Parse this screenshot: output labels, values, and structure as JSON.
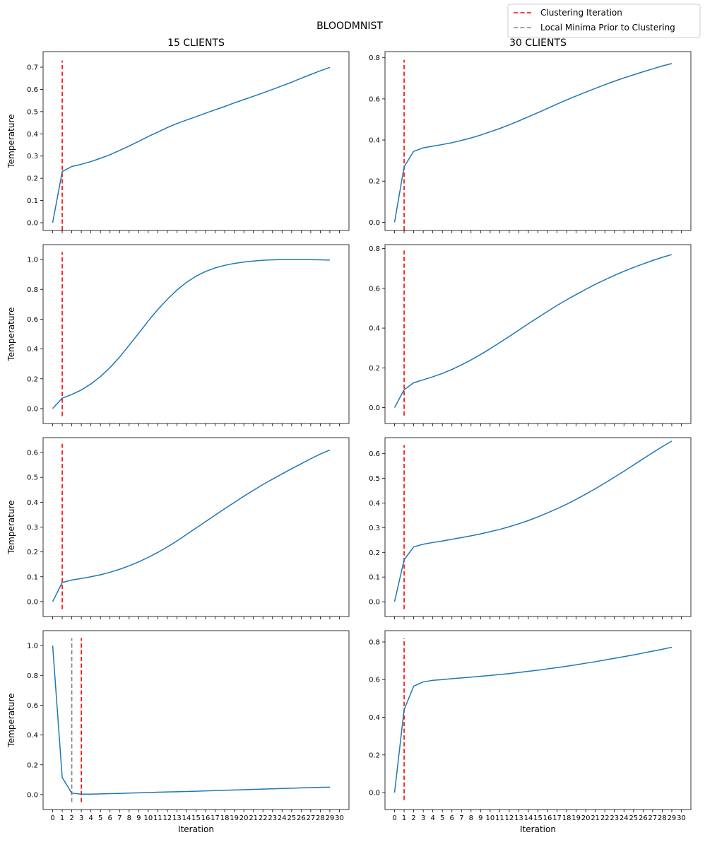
{
  "figure": {
    "suptitle": "BLOODMNIST",
    "column_titles": [
      "15 CLIENTS",
      "30 CLIENTS"
    ],
    "xlabel": "Iteration",
    "ylabel": "Temperature",
    "legend": {
      "placement": "top-right",
      "entries": [
        {
          "label": "Clustering Iteration",
          "color": "#ff0000",
          "style": "dashed"
        },
        {
          "label": "Local Minima Prior to Clustering",
          "color": "#808080",
          "style": "dashed"
        }
      ]
    },
    "series_color": "#1f77b4"
  },
  "chart_data": [
    {
      "type": "line",
      "row": 0,
      "col": 0,
      "title": "15 CLIENTS",
      "xlabel": "",
      "ylabel": "Temperature",
      "xlim": [
        -1,
        31
      ],
      "ylim": [
        -0.035,
        0.77
      ],
      "xticks": [
        0,
        1,
        2,
        3,
        4,
        5,
        6,
        7,
        8,
        9,
        10,
        11,
        12,
        13,
        14,
        15,
        16,
        17,
        18,
        19,
        20,
        21,
        22,
        23,
        24,
        25,
        26,
        27,
        28,
        29,
        30
      ],
      "show_xticklabels": false,
      "yticks": [
        0.0,
        0.1,
        0.2,
        0.3,
        0.4,
        0.5,
        0.6,
        0.7
      ],
      "ytick_labels": [
        "0.0",
        "0.1",
        "0.2",
        "0.3",
        "0.4",
        "0.5",
        "0.6",
        "0.7"
      ],
      "x": [
        0,
        1,
        2,
        3,
        4,
        5,
        6,
        7,
        8,
        9,
        10,
        11,
        12,
        13,
        14,
        15,
        16,
        17,
        18,
        19,
        20,
        21,
        22,
        23,
        24,
        25,
        26,
        27,
        28,
        29
      ],
      "y": [
        0.0,
        0.23,
        0.253,
        0.263,
        0.275,
        0.29,
        0.306,
        0.325,
        0.345,
        0.366,
        0.388,
        0.408,
        0.428,
        0.446,
        0.462,
        0.477,
        0.493,
        0.508,
        0.523,
        0.539,
        0.554,
        0.569,
        0.584,
        0.6,
        0.616,
        0.632,
        0.65,
        0.667,
        0.684,
        0.699
      ],
      "vlines": [
        {
          "x": 1,
          "ymin": -0.035,
          "ymax": 0.73,
          "color": "#ff0000",
          "legend": "Clustering Iteration"
        }
      ]
    },
    {
      "type": "line",
      "row": 0,
      "col": 1,
      "title": "30 CLIENTS",
      "xlabel": "",
      "ylabel": "",
      "xlim": [
        -1,
        31
      ],
      "ylim": [
        -0.04,
        0.83
      ],
      "xticks": [
        0,
        1,
        2,
        3,
        4,
        5,
        6,
        7,
        8,
        9,
        10,
        11,
        12,
        13,
        14,
        15,
        16,
        17,
        18,
        19,
        20,
        21,
        22,
        23,
        24,
        25,
        26,
        27,
        28,
        29,
        30
      ],
      "show_xticklabels": false,
      "yticks": [
        0.0,
        0.2,
        0.4,
        0.6,
        0.8
      ],
      "ytick_labels": [
        "0.0",
        "0.2",
        "0.4",
        "0.6",
        "0.8"
      ],
      "x": [
        0,
        1,
        2,
        3,
        4,
        5,
        6,
        7,
        8,
        9,
        10,
        11,
        12,
        13,
        14,
        15,
        16,
        17,
        18,
        19,
        20,
        21,
        22,
        23,
        24,
        25,
        26,
        27,
        28,
        29
      ],
      "y": [
        0.0,
        0.27,
        0.345,
        0.362,
        0.37,
        0.378,
        0.387,
        0.398,
        0.41,
        0.424,
        0.44,
        0.456,
        0.474,
        0.493,
        0.513,
        0.533,
        0.554,
        0.575,
        0.595,
        0.614,
        0.633,
        0.651,
        0.669,
        0.686,
        0.702,
        0.717,
        0.732,
        0.746,
        0.76,
        0.772
      ],
      "vlines": [
        {
          "x": 1,
          "ymin": -0.04,
          "ymax": 0.79,
          "color": "#ff0000",
          "legend": "Clustering Iteration"
        }
      ]
    },
    {
      "type": "line",
      "row": 1,
      "col": 0,
      "title": "",
      "xlabel": "",
      "ylabel": "Temperature",
      "xlim": [
        -1,
        31
      ],
      "ylim": [
        -0.1,
        1.1
      ],
      "xticks": [
        0,
        1,
        2,
        3,
        4,
        5,
        6,
        7,
        8,
        9,
        10,
        11,
        12,
        13,
        14,
        15,
        16,
        17,
        18,
        19,
        20,
        21,
        22,
        23,
        24,
        25,
        26,
        27,
        28,
        29,
        30
      ],
      "show_xticklabels": false,
      "yticks": [
        0.0,
        0.2,
        0.4,
        0.6,
        0.8,
        1.0
      ],
      "ytick_labels": [
        "0.0",
        "0.2",
        "0.4",
        "0.6",
        "0.8",
        "1.0"
      ],
      "x": [
        0,
        1,
        2,
        3,
        4,
        5,
        6,
        7,
        8,
        9,
        10,
        11,
        12,
        13,
        14,
        15,
        16,
        17,
        18,
        19,
        20,
        21,
        22,
        23,
        24,
        25,
        26,
        27,
        28,
        29
      ],
      "y": [
        0.0,
        0.07,
        0.095,
        0.125,
        0.165,
        0.215,
        0.275,
        0.345,
        0.425,
        0.505,
        0.588,
        0.665,
        0.733,
        0.795,
        0.847,
        0.888,
        0.92,
        0.944,
        0.961,
        0.974,
        0.983,
        0.99,
        0.995,
        0.998,
        1.0,
        1.0,
        1.0,
        0.999,
        0.998,
        0.996
      ],
      "vlines": [
        {
          "x": 1,
          "ymin": -0.05,
          "ymax": 1.05,
          "color": "#ff0000",
          "legend": "Clustering Iteration"
        }
      ]
    },
    {
      "type": "line",
      "row": 1,
      "col": 1,
      "title": "",
      "xlabel": "",
      "ylabel": "",
      "xlim": [
        -1,
        31
      ],
      "ylim": [
        -0.08,
        0.82
      ],
      "xticks": [
        0,
        1,
        2,
        3,
        4,
        5,
        6,
        7,
        8,
        9,
        10,
        11,
        12,
        13,
        14,
        15,
        16,
        17,
        18,
        19,
        20,
        21,
        22,
        23,
        24,
        25,
        26,
        27,
        28,
        29,
        30
      ],
      "show_xticklabels": false,
      "yticks": [
        0.0,
        0.2,
        0.4,
        0.6,
        0.8
      ],
      "ytick_labels": [
        "0.0",
        "0.2",
        "0.4",
        "0.6",
        "0.8"
      ],
      "x": [
        0,
        1,
        2,
        3,
        4,
        5,
        6,
        7,
        8,
        9,
        10,
        11,
        12,
        13,
        14,
        15,
        16,
        17,
        18,
        19,
        20,
        21,
        22,
        23,
        24,
        25,
        26,
        27,
        28,
        29
      ],
      "y": [
        0.0,
        0.09,
        0.125,
        0.14,
        0.155,
        0.172,
        0.192,
        0.215,
        0.24,
        0.267,
        0.296,
        0.327,
        0.358,
        0.39,
        0.422,
        0.453,
        0.484,
        0.514,
        0.542,
        0.569,
        0.595,
        0.62,
        0.643,
        0.665,
        0.686,
        0.705,
        0.723,
        0.74,
        0.756,
        0.77
      ],
      "vlines": [
        {
          "x": 1,
          "ymin": -0.04,
          "ymax": 0.79,
          "color": "#ff0000",
          "legend": "Clustering Iteration"
        }
      ]
    },
    {
      "type": "line",
      "row": 2,
      "col": 0,
      "title": "",
      "xlabel": "",
      "ylabel": "Temperature",
      "xlim": [
        -1,
        31
      ],
      "ylim": [
        -0.06,
        0.66
      ],
      "xticks": [
        0,
        1,
        2,
        3,
        4,
        5,
        6,
        7,
        8,
        9,
        10,
        11,
        12,
        13,
        14,
        15,
        16,
        17,
        18,
        19,
        20,
        21,
        22,
        23,
        24,
        25,
        26,
        27,
        28,
        29,
        30
      ],
      "show_xticklabels": false,
      "yticks": [
        0.0,
        0.1,
        0.2,
        0.3,
        0.4,
        0.5,
        0.6
      ],
      "ytick_labels": [
        "0.0",
        "0.1",
        "0.2",
        "0.3",
        "0.4",
        "0.5",
        "0.6"
      ],
      "x": [
        0,
        1,
        2,
        3,
        4,
        5,
        6,
        7,
        8,
        9,
        10,
        11,
        12,
        13,
        14,
        15,
        16,
        17,
        18,
        19,
        20,
        21,
        22,
        23,
        24,
        25,
        26,
        27,
        28,
        29
      ],
      "y": [
        0.0,
        0.077,
        0.087,
        0.093,
        0.1,
        0.108,
        0.118,
        0.13,
        0.144,
        0.16,
        0.178,
        0.198,
        0.22,
        0.244,
        0.27,
        0.296,
        0.322,
        0.348,
        0.374,
        0.399,
        0.424,
        0.448,
        0.471,
        0.493,
        0.514,
        0.535,
        0.555,
        0.575,
        0.594,
        0.61
      ],
      "vlines": [
        {
          "x": 1,
          "ymin": -0.03,
          "ymax": 0.635,
          "color": "#ff0000",
          "legend": "Clustering Iteration"
        }
      ]
    },
    {
      "type": "line",
      "row": 2,
      "col": 1,
      "title": "",
      "xlabel": "",
      "ylabel": "",
      "xlim": [
        -1,
        31
      ],
      "ylim": [
        -0.06,
        0.665
      ],
      "xticks": [
        0,
        1,
        2,
        3,
        4,
        5,
        6,
        7,
        8,
        9,
        10,
        11,
        12,
        13,
        14,
        15,
        16,
        17,
        18,
        19,
        20,
        21,
        22,
        23,
        24,
        25,
        26,
        27,
        28,
        29,
        30
      ],
      "show_xticklabels": false,
      "yticks": [
        0.0,
        0.1,
        0.2,
        0.3,
        0.4,
        0.5,
        0.6
      ],
      "ytick_labels": [
        "0.0",
        "0.1",
        "0.2",
        "0.3",
        "0.4",
        "0.5",
        "0.6"
      ],
      "x": [
        0,
        1,
        2,
        3,
        4,
        5,
        6,
        7,
        8,
        9,
        10,
        11,
        12,
        13,
        14,
        15,
        16,
        17,
        18,
        19,
        20,
        21,
        22,
        23,
        24,
        25,
        26,
        27,
        28,
        29
      ],
      "y": [
        0.0,
        0.17,
        0.222,
        0.233,
        0.24,
        0.246,
        0.253,
        0.26,
        0.267,
        0.275,
        0.284,
        0.293,
        0.304,
        0.316,
        0.329,
        0.344,
        0.36,
        0.377,
        0.395,
        0.415,
        0.436,
        0.458,
        0.481,
        0.505,
        0.529,
        0.554,
        0.579,
        0.604,
        0.628,
        0.651
      ],
      "vlines": [
        {
          "x": 1,
          "ymin": -0.03,
          "ymax": 0.635,
          "color": "#ff0000",
          "legend": "Clustering Iteration"
        }
      ]
    },
    {
      "type": "line",
      "row": 3,
      "col": 0,
      "title": "",
      "xlabel": "Iteration",
      "ylabel": "Temperature",
      "xlim": [
        -1,
        31
      ],
      "ylim": [
        -0.1,
        1.1
      ],
      "xticks": [
        0,
        1,
        2,
        3,
        4,
        5,
        6,
        7,
        8,
        9,
        10,
        11,
        12,
        13,
        14,
        15,
        16,
        17,
        18,
        19,
        20,
        21,
        22,
        23,
        24,
        25,
        26,
        27,
        28,
        29,
        30
      ],
      "xtick_labels": [
        "0",
        "1",
        "2",
        "3",
        "4",
        "5",
        "6",
        "7",
        "8",
        "9",
        "10",
        "11",
        "12",
        "13",
        "14",
        "15",
        "16",
        "17",
        "18",
        "19",
        "20",
        "21",
        "22",
        "23",
        "24",
        "25",
        "26",
        "27",
        "28",
        "29",
        "30"
      ],
      "show_xticklabels": true,
      "yticks": [
        0.0,
        0.2,
        0.4,
        0.6,
        0.8,
        1.0
      ],
      "ytick_labels": [
        "0.0",
        "0.2",
        "0.4",
        "0.6",
        "0.8",
        "1.0"
      ],
      "x": [
        0,
        1,
        2,
        3,
        4,
        5,
        6,
        7,
        8,
        9,
        10,
        11,
        12,
        13,
        14,
        15,
        16,
        17,
        18,
        19,
        20,
        21,
        22,
        23,
        24,
        25,
        26,
        27,
        28,
        29
      ],
      "y": [
        1.0,
        0.115,
        0.01,
        0.003,
        0.003,
        0.005,
        0.007,
        0.008,
        0.01,
        0.012,
        0.014,
        0.016,
        0.018,
        0.019,
        0.021,
        0.023,
        0.025,
        0.027,
        0.029,
        0.031,
        0.033,
        0.035,
        0.037,
        0.039,
        0.041,
        0.043,
        0.045,
        0.047,
        0.049,
        0.05
      ],
      "vlines": [
        {
          "x": 3,
          "ymin": -0.05,
          "ymax": 1.05,
          "color": "#ff0000",
          "legend": "Clustering Iteration"
        },
        {
          "x": 2,
          "ymin": -0.05,
          "ymax": 1.05,
          "color": "#808080",
          "legend": "Local Minima Prior to Clustering"
        }
      ]
    },
    {
      "type": "line",
      "row": 3,
      "col": 1,
      "title": "",
      "xlabel": "Iteration",
      "ylabel": "",
      "xlim": [
        -1,
        31
      ],
      "ylim": [
        -0.09,
        0.86
      ],
      "xticks": [
        0,
        1,
        2,
        3,
        4,
        5,
        6,
        7,
        8,
        9,
        10,
        11,
        12,
        13,
        14,
        15,
        16,
        17,
        18,
        19,
        20,
        21,
        22,
        23,
        24,
        25,
        26,
        27,
        28,
        29,
        30
      ],
      "xtick_labels": [
        "0",
        "1",
        "2",
        "3",
        "4",
        "5",
        "6",
        "7",
        "8",
        "9",
        "10",
        "11",
        "12",
        "13",
        "14",
        "15",
        "16",
        "17",
        "18",
        "19",
        "20",
        "21",
        "22",
        "23",
        "24",
        "25",
        "26",
        "27",
        "28",
        "29",
        "30"
      ],
      "show_xticklabels": true,
      "yticks": [
        0.0,
        0.2,
        0.4,
        0.6,
        0.8
      ],
      "ytick_labels": [
        "0.0",
        "0.2",
        "0.4",
        "0.6",
        "0.8"
      ],
      "x": [
        0,
        1,
        2,
        3,
        4,
        5,
        6,
        7,
        8,
        9,
        10,
        11,
        12,
        13,
        14,
        15,
        16,
        17,
        18,
        19,
        20,
        21,
        22,
        23,
        24,
        25,
        26,
        27,
        28,
        29
      ],
      "y": [
        0.0,
        0.44,
        0.565,
        0.588,
        0.596,
        0.6,
        0.605,
        0.609,
        0.613,
        0.618,
        0.622,
        0.627,
        0.632,
        0.638,
        0.644,
        0.65,
        0.657,
        0.664,
        0.671,
        0.679,
        0.687,
        0.695,
        0.704,
        0.713,
        0.722,
        0.731,
        0.741,
        0.751,
        0.761,
        0.772
      ],
      "vlines": [
        {
          "x": 1,
          "ymin": -0.04,
          "ymax": 0.82,
          "color": "#ff0000",
          "legend": "Clustering Iteration"
        }
      ]
    }
  ]
}
